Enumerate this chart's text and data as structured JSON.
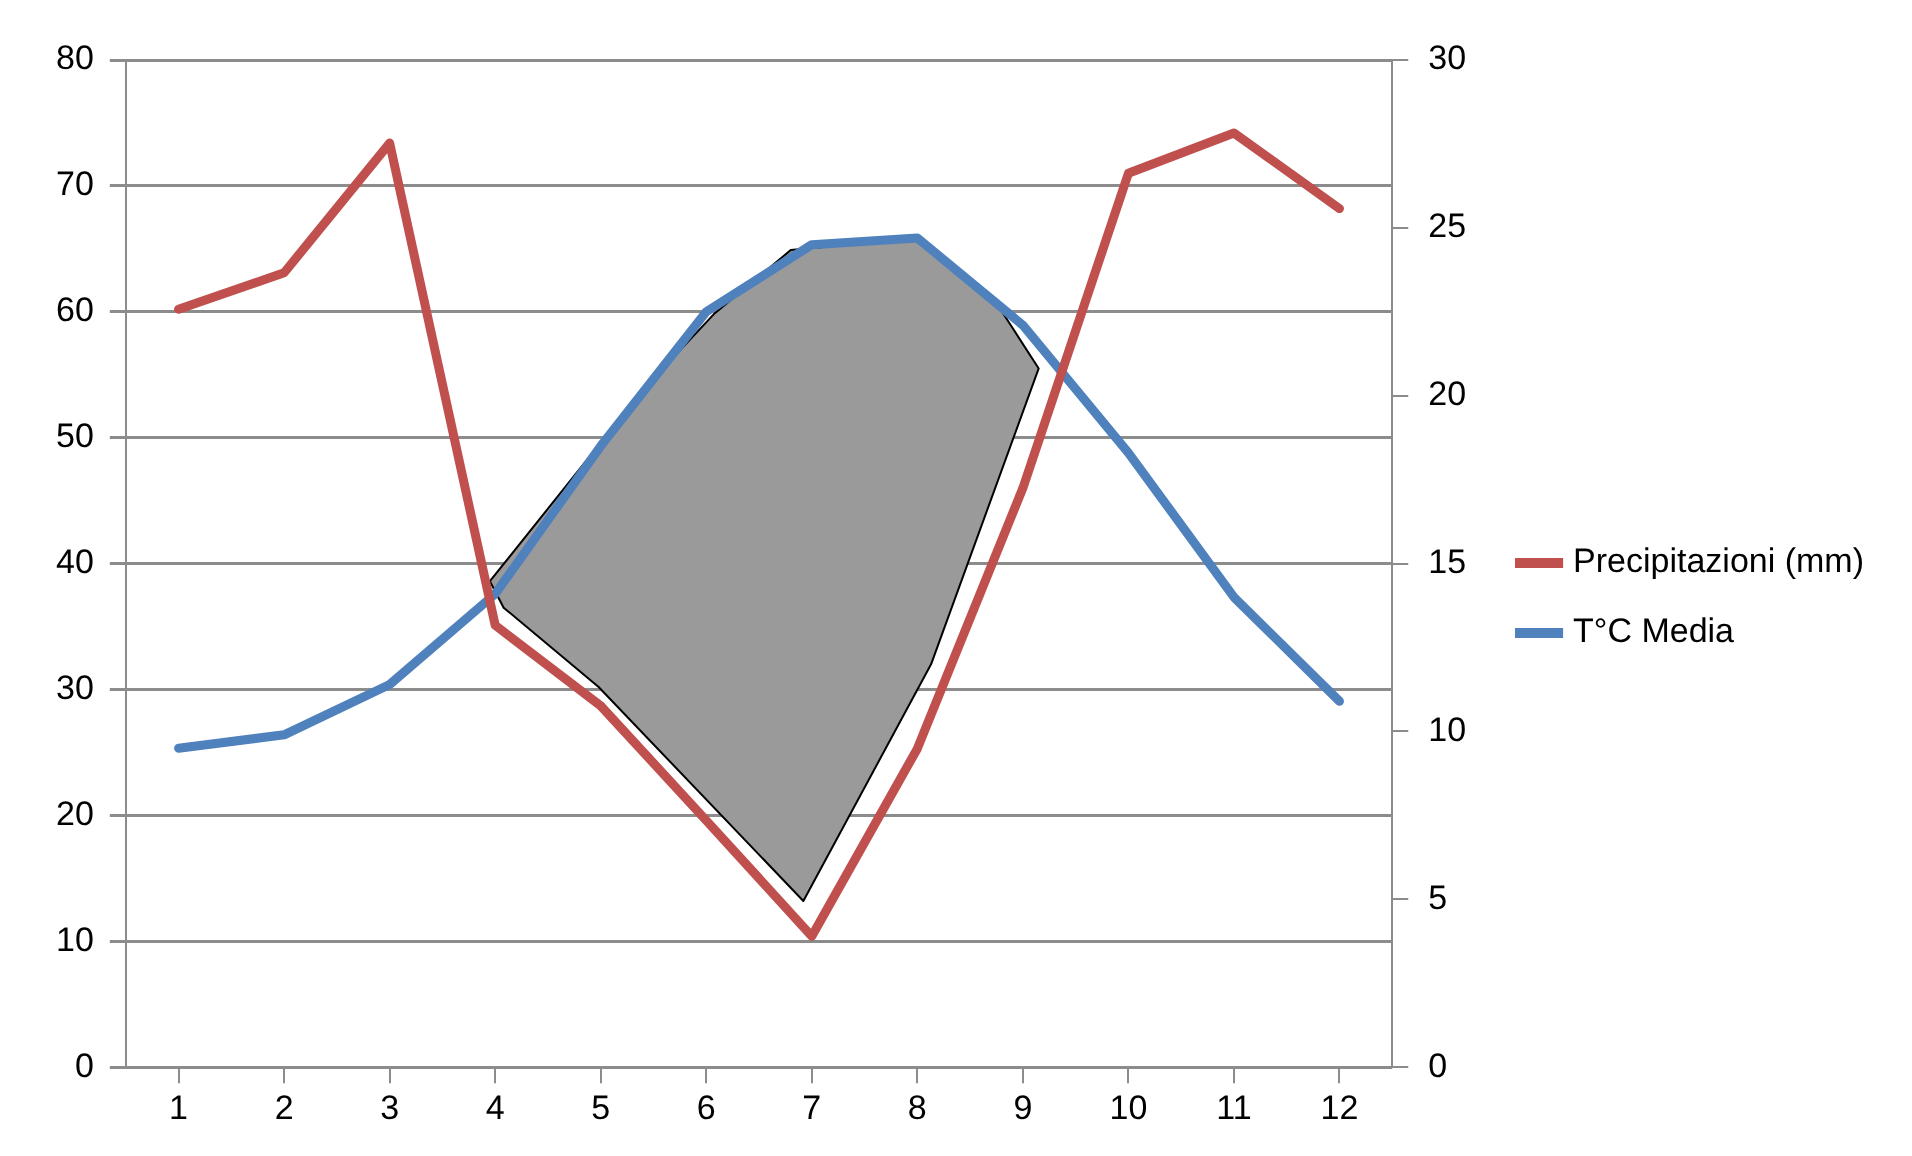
{
  "chart_data": {
    "type": "line",
    "x": [
      1,
      2,
      3,
      4,
      5,
      6,
      7,
      8,
      9,
      10,
      11,
      12
    ],
    "xlim": [
      0.5,
      12.5
    ],
    "xticks": [
      1,
      2,
      3,
      4,
      5,
      6,
      7,
      8,
      9,
      10,
      11,
      12
    ],
    "ylim": [
      0,
      80
    ],
    "yticks": [
      0,
      10,
      20,
      30,
      40,
      50,
      60,
      70,
      80
    ],
    "y2lim": [
      0,
      30
    ],
    "y2ticks": [
      0,
      5,
      10,
      15,
      20,
      25,
      30
    ],
    "series": [
      {
        "name": "Precipitazioni (mm)",
        "color": "#c0504d",
        "values": [
          60.2,
          63.1,
          73.4,
          35.1,
          28.7,
          19.6,
          10.4,
          25.3,
          46,
          71,
          74.2,
          68.2
        ]
      },
      {
        "name": "T°C Media",
        "color": "#4f81bd",
        "axis": "y2",
        "values": [
          9.5,
          9.9,
          11.4,
          14.1,
          18.5,
          22.5,
          24.5,
          24.7,
          22.1,
          18.3,
          14,
          10.9
        ]
      },
      {
        "type": "area",
        "color": "#9a9a9a",
        "x": [
          3.95,
          5.4,
          6.07,
          6.8,
          7.97,
          8.78,
          9.15,
          8.13,
          6.92,
          4.98,
          4.08,
          3.95
        ],
        "values": [
          38.6,
          53.8,
          59.8,
          64.9,
          65.8,
          60.3,
          55.5,
          32,
          13.2,
          30.2,
          36.5,
          38.6
        ]
      }
    ],
    "grid": "y",
    "legend": "right",
    "marker": "none",
    "line_style": "solid"
  }
}
